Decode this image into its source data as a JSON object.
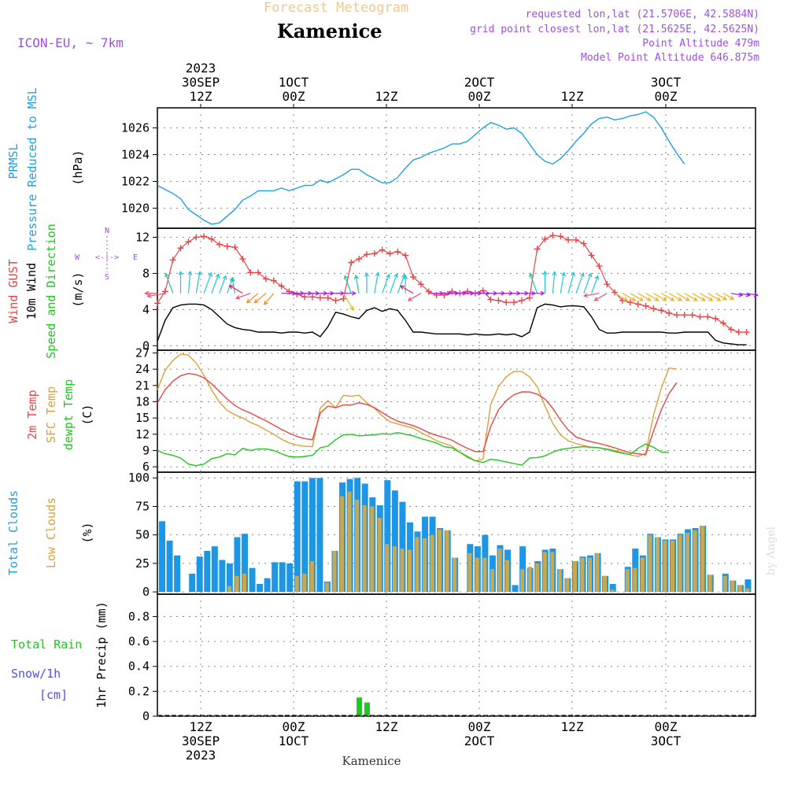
{
  "header": {
    "product": "Forecast Meteogram",
    "location": "Kamenice",
    "model": "ICON-EU, ~ 7km",
    "requested": "requested lon,lat (21.5706E, 42.5884N)",
    "gridpoint": "grid point closest lon,lat (21.5625E, 42.5625N)",
    "altitude": "Point Altitude 479m",
    "model_altitude": "Model Point Altitude 646.875m",
    "footer_location": "Kamenice",
    "credit": "by Angel"
  },
  "time_axis": {
    "top": [
      {
        "label": [
          "2023",
          "30SEP",
          "12Z"
        ]
      },
      {
        "label": [
          "1OCT",
          "00Z"
        ]
      },
      {
        "label": [
          "12Z"
        ]
      },
      {
        "label": [
          "2OCT",
          "00Z"
        ]
      },
      {
        "label": [
          "12Z"
        ]
      },
      {
        "label": [
          "3OCT",
          "00Z"
        ]
      }
    ],
    "bottom": [
      {
        "label": [
          "12Z",
          "30SEP",
          "2023"
        ]
      },
      {
        "label": [
          "00Z",
          "1OCT"
        ]
      },
      {
        "label": [
          "12Z"
        ]
      },
      {
        "label": [
          "00Z",
          "2OCT"
        ]
      },
      {
        "label": [
          "12Z"
        ]
      },
      {
        "label": [
          "00Z",
          "3OCT"
        ]
      }
    ]
  },
  "panel_labels": {
    "pressure": {
      "l1": "PRMSL",
      "l2": "Pressure Reduced to MSL",
      "units": "(hPa)"
    },
    "wind": {
      "gust": "Wind GUST",
      "wind": "10m Wind",
      "dir": "Speed and Direction",
      "units": "(m/s)",
      "compass_n": "N",
      "compass_s": "S",
      "compass_w": "W",
      "compass_e": "E",
      "compass_mid": "<-|->"
    },
    "temp": {
      "t2m": "2m Temp",
      "sfc": "SFC Temp",
      "dew": "dewpt Temp",
      "units": "(C)"
    },
    "clouds": {
      "total": "Total Clouds",
      "low": "Low Clouds",
      "units": "(%)"
    },
    "precip": {
      "rain": "Total  Rain",
      "snow1": "Snow/1h",
      "snow2": "[cm]",
      "units": "1hr Precip (mm)"
    }
  },
  "colors": {
    "pressure": "#1ea0e6",
    "gust": "#e84646",
    "wind": "#000000",
    "t2m": "#e84646",
    "sfc": "#dca03c",
    "dew": "#1ec81e",
    "total_cloud": "#1e96e6",
    "low_cloud": "#c8a850",
    "rain": "#1ec81e",
    "label_purple": "#a050dc",
    "label_green": "#1ec81e",
    "label_blue": "#1ea0e6",
    "label_red": "#e84646",
    "label_orange": "#dca03c",
    "label_snow": "#5050e6",
    "title_orange": "#f0c890"
  },
  "chart_data": [
    {
      "type": "line",
      "title": "PRMSL Pressure Reduced to MSL",
      "ylabel": "(hPa)",
      "ylim": [
        1018.5,
        1027.5
      ],
      "yticks": [
        1020,
        1022,
        1024,
        1026
      ],
      "x_start_hour": 0,
      "x_step_hours": 1,
      "x_range_hours": [
        0,
        64
      ],
      "series": [
        {
          "name": "PRMSL",
          "values": [
            1021.7,
            1021.4,
            1021.1,
            1020.7,
            1019.9,
            1019.5,
            1019.1,
            1018.8,
            1018.9,
            1019.4,
            1019.9,
            1020.6,
            1020.9,
            1021.3,
            1021.3,
            1021.3,
            1021.5,
            1021.3,
            1021.5,
            1021.7,
            1021.7,
            1022.1,
            1021.9,
            1022.2,
            1022.5,
            1022.9,
            1022.9,
            1022.5,
            1022.2,
            1021.9,
            1021.9,
            1022.3,
            1023.0,
            1023.6,
            1023.8,
            1024.1,
            1024.3,
            1024.5,
            1024.8,
            1024.8,
            1025.0,
            1025.5,
            1026.0,
            1026.4,
            1026.2,
            1025.9,
            1026.0,
            1025.6,
            1024.8,
            1024.0,
            1023.5,
            1023.3,
            1023.7,
            1024.3,
            1025.0,
            1025.6,
            1026.3,
            1026.7,
            1026.8,
            1026.6,
            1026.7,
            1026.9,
            1027.0,
            1027.2,
            1026.8,
            1026.0,
            1025.0,
            1024.1,
            1023.3
          ]
        }
      ]
    },
    {
      "type": "line",
      "title": "Wind GUST / 10m Wind Speed and Direction",
      "ylabel": "(m/s)",
      "ylim": [
        -0.5,
        13
      ],
      "yticks": [
        0,
        4,
        8,
        12
      ],
      "series": [
        {
          "name": "Wind GUST",
          "values": [
            4.7,
            6.0,
            9.5,
            10.8,
            11.5,
            12.0,
            12.1,
            11.8,
            11.2,
            11.0,
            10.9,
            9.6,
            8.1,
            8.1,
            7.4,
            7.2,
            6.6,
            6.0,
            5.7,
            5.4,
            5.4,
            5.3,
            5.3,
            5.0,
            5.2,
            9.2,
            9.6,
            10.1,
            10.2,
            10.6,
            10.2,
            10.4,
            10.0,
            7.6,
            6.8,
            6.0,
            5.6,
            5.6,
            6.0,
            5.8,
            6.0,
            5.8,
            6.1,
            5.1,
            5.0,
            4.8,
            4.8,
            5.0,
            5.3,
            10.7,
            11.8,
            12.2,
            12.1,
            11.7,
            11.7,
            11.3,
            10.0,
            8.8,
            6.8,
            5.9,
            5.0,
            4.8,
            4.6,
            4.4,
            4.1,
            3.9,
            3.6,
            3.4,
            3.4,
            3.4,
            3.2,
            3.2,
            3.0,
            2.5,
            1.8,
            1.5,
            1.5
          ]
        },
        {
          "name": "10m Wind",
          "values": [
            0.5,
            2.8,
            4.2,
            4.5,
            4.6,
            4.6,
            4.5,
            4.0,
            3.2,
            2.4,
            2.0,
            1.8,
            1.7,
            1.5,
            1.5,
            1.5,
            1.4,
            1.5,
            1.5,
            1.4,
            1.5,
            1.0,
            2.1,
            3.7,
            3.5,
            3.2,
            3.0,
            3.9,
            4.2,
            3.8,
            4.1,
            3.9,
            2.8,
            1.5,
            1.5,
            1.4,
            1.3,
            1.3,
            1.3,
            1.3,
            1.2,
            1.3,
            1.2,
            1.2,
            1.3,
            1.2,
            1.3,
            1.0,
            1.5,
            4.2,
            4.6,
            4.5,
            4.3,
            4.4,
            4.4,
            4.3,
            3.2,
            1.8,
            1.4,
            1.4,
            1.5,
            1.5,
            1.5,
            1.5,
            1.5,
            1.5,
            1.4,
            1.4,
            1.5,
            1.5,
            1.5,
            1.5,
            0.6,
            0.3,
            0.2,
            0.1,
            0.1
          ]
        },
        {
          "name": "Direction (deg)",
          "values": [
            90,
            80,
            160,
            180,
            185,
            190,
            200,
            200,
            200,
            200,
            170,
            120,
            70,
            50,
            50,
            40,
            270,
            270,
            270,
            270,
            270,
            270,
            270,
            270,
            330,
            160,
            170,
            180,
            190,
            200,
            200,
            200,
            180,
            120,
            60,
            270,
            270,
            270,
            270,
            270,
            270,
            270,
            270,
            270,
            270,
            270,
            270,
            270,
            270,
            160,
            180,
            185,
            190,
            195,
            200,
            200,
            200,
            80,
            60,
            300,
            300,
            300,
            300,
            300,
            300,
            300,
            300,
            300,
            300,
            300,
            300,
            300,
            300,
            300,
            280,
            280,
            280
          ]
        }
      ]
    },
    {
      "type": "line",
      "title": "2m Temp / SFC Temp / dewpt Temp",
      "ylabel": "(C)",
      "ylim": [
        5,
        27.5
      ],
      "yticks": [
        6,
        9,
        12,
        15,
        18,
        21,
        24,
        27
      ],
      "series": [
        {
          "name": "2m Temp",
          "values": [
            17.8,
            20.2,
            21.8,
            22.8,
            23.2,
            23.0,
            22.4,
            21.3,
            19.9,
            18.5,
            17.3,
            16.5,
            15.9,
            15.2,
            14.5,
            13.7,
            12.9,
            12.2,
            11.6,
            11.2,
            11.0,
            15.9,
            17.2,
            16.9,
            17.4,
            17.4,
            17.8,
            17.5,
            16.9,
            16.0,
            15.1,
            14.4,
            14.0,
            13.6,
            13.0,
            12.3,
            11.8,
            11.4,
            10.9,
            10.1,
            9.4,
            8.8,
            8.8,
            13.4,
            16.5,
            18.2,
            19.3,
            19.8,
            19.8,
            19.4,
            18.5,
            16.8,
            14.6,
            12.8,
            11.5,
            11.0,
            10.6,
            10.3,
            9.9,
            9.5,
            9.0,
            8.6,
            8.4,
            8.2,
            12.6,
            16.5,
            19.5,
            21.5
          ]
        },
        {
          "name": "SFC Temp",
          "values": [
            20.2,
            23.8,
            25.6,
            26.8,
            26.6,
            25.1,
            22.9,
            20.2,
            17.9,
            16.4,
            15.6,
            15.0,
            14.2,
            13.6,
            12.8,
            12.0,
            11.1,
            10.4,
            10.0,
            9.8,
            9.7,
            16.8,
            18.2,
            16.9,
            19.2,
            19.0,
            19.2,
            17.8,
            16.8,
            15.4,
            14.3,
            13.9,
            13.5,
            13.1,
            12.3,
            11.6,
            10.8,
            10.3,
            9.8,
            8.7,
            7.7,
            7.1,
            7.4,
            17.5,
            20.8,
            22.6,
            23.6,
            23.6,
            22.6,
            20.8,
            17.2,
            14.0,
            11.9,
            10.8,
            10.3,
            9.9,
            9.6,
            9.5,
            9.3,
            9.0,
            8.6,
            8.2,
            7.9,
            8.5,
            15.5,
            20.5,
            24.2,
            24.0
          ]
        },
        {
          "name": "dewpt Temp",
          "values": [
            9.0,
            8.4,
            8.1,
            7.6,
            6.5,
            6.2,
            6.5,
            7.5,
            7.8,
            8.4,
            8.2,
            9.4,
            9.0,
            9.3,
            9.3,
            9.0,
            8.4,
            7.9,
            7.8,
            7.9,
            8.1,
            9.5,
            9.8,
            11.0,
            11.9,
            12.0,
            11.7,
            11.8,
            11.9,
            12.1,
            12.0,
            12.3,
            12.0,
            11.7,
            11.2,
            10.8,
            10.4,
            9.7,
            9.5,
            8.7,
            7.9,
            7.1,
            6.8,
            7.4,
            7.2,
            6.9,
            6.6,
            6.3,
            7.6,
            7.7,
            8.0,
            8.7,
            9.2,
            9.4,
            9.6,
            9.7,
            9.6,
            9.5,
            9.2,
            8.8,
            8.5,
            8.3,
            9.4,
            10.2,
            9.6,
            8.7,
            8.6
          ]
        }
      ]
    },
    {
      "type": "bar",
      "title": "Total Clouds / Low Clouds",
      "ylabel": "(%)",
      "ylim": [
        -2,
        105
      ],
      "yticks": [
        0,
        25,
        50,
        75,
        100
      ],
      "series": [
        {
          "name": "Total Clouds",
          "values": [
            62,
            45,
            32,
            0,
            16,
            31,
            36,
            40,
            28,
            25,
            48,
            51,
            21,
            7,
            12,
            26,
            26,
            25,
            97,
            97,
            100,
            100,
            9,
            36,
            96,
            99,
            100,
            95,
            83,
            76,
            98,
            89,
            79,
            61,
            53,
            66,
            66,
            56,
            54,
            30,
            0,
            42,
            40,
            50,
            32,
            41,
            37,
            6,
            40,
            21,
            27,
            37,
            38,
            20,
            12,
            27,
            31,
            32,
            34,
            14,
            7,
            0,
            22,
            38,
            32,
            51,
            48,
            46,
            46,
            51,
            55,
            56,
            58,
            15,
            0,
            16,
            10,
            6,
            11
          ]
        },
        {
          "name": "Low Clouds",
          "values": [
            0,
            0,
            0,
            0,
            0,
            0,
            0,
            0,
            0,
            5,
            14,
            16,
            0,
            0,
            0,
            0,
            0,
            0,
            14,
            16,
            27,
            0,
            8,
            36,
            84,
            88,
            81,
            76,
            75,
            65,
            42,
            40,
            38,
            37,
            48,
            47,
            50,
            55,
            54,
            30,
            0,
            34,
            30,
            30,
            20,
            38,
            28,
            0,
            20,
            22,
            25,
            35,
            35,
            20,
            12,
            27,
            30,
            30,
            34,
            14,
            2,
            0,
            20,
            21,
            30,
            50,
            48,
            45,
            45,
            50,
            52,
            54,
            58,
            15,
            0,
            14,
            10,
            6,
            3
          ]
        }
      ]
    },
    {
      "type": "bar",
      "title": "1hr Precip (mm)",
      "ylabel": "1hr Precip (mm)",
      "ylim": [
        0,
        0.98
      ],
      "yticks": [
        0,
        0.2,
        0.4,
        0.6,
        0.8
      ],
      "tick_labels": [
        "0",
        "0.2",
        "0.4",
        "0.6",
        "0.8"
      ],
      "series": [
        {
          "name": "Total Rain",
          "values": [
            0,
            0,
            0,
            0,
            0,
            0,
            0,
            0,
            0,
            0,
            0,
            0,
            0,
            0,
            0,
            0,
            0,
            0,
            0,
            0,
            0,
            0,
            0,
            0,
            0,
            0,
            0.15,
            0.11,
            0,
            0,
            0,
            0,
            0,
            0,
            0,
            0,
            0,
            0,
            0,
            0,
            0,
            0,
            0,
            0,
            0,
            0,
            0,
            0,
            0,
            0,
            0,
            0,
            0,
            0,
            0,
            0,
            0,
            0,
            0,
            0,
            0,
            0,
            0,
            0,
            0,
            0,
            0,
            0,
            0
          ]
        }
      ]
    }
  ]
}
